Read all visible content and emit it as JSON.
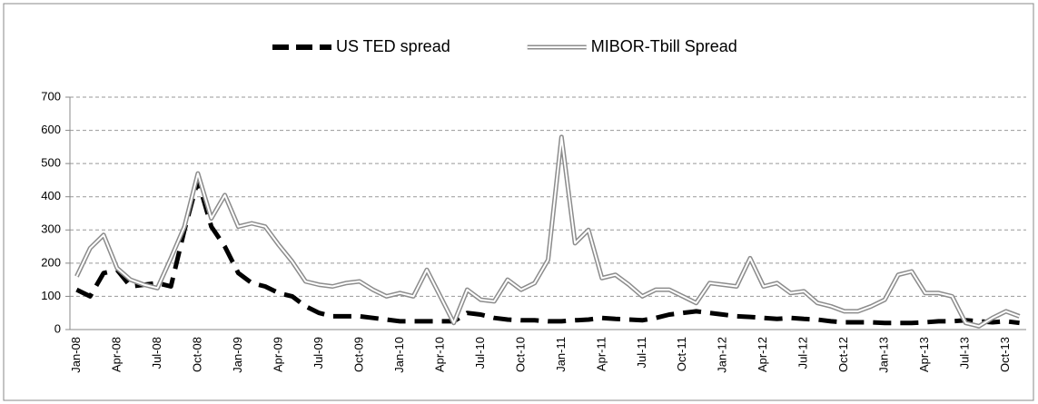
{
  "chart_data": {
    "type": "line",
    "categories": [
      "Jan-08",
      null,
      null,
      "Apr-08",
      null,
      null,
      "Jul-08",
      null,
      null,
      "Oct-08",
      null,
      null,
      "Jan-09",
      null,
      null,
      "Apr-09",
      null,
      null,
      "Jul-09",
      null,
      null,
      "Oct-09",
      null,
      null,
      "Jan-10",
      null,
      null,
      "Apr-10",
      null,
      null,
      "Jul-10",
      null,
      null,
      "Oct-10",
      null,
      null,
      "Jan-11",
      null,
      null,
      "Apr-11",
      null,
      null,
      "Jul-11",
      null,
      null,
      "Oct-11",
      null,
      null,
      "Jan-12",
      null,
      null,
      "Apr-12",
      null,
      null,
      "Jul-12",
      null,
      null,
      "Oct-12",
      null,
      null,
      "Jan-13",
      null,
      null,
      "Apr-13",
      null,
      null,
      "Jul-13",
      null,
      null,
      "Oct-13",
      null
    ],
    "series": [
      {
        "name": "US TED spread",
        "color": "#000000",
        "style": "dashed",
        "values": [
          120,
          100,
          170,
          180,
          130,
          135,
          140,
          130,
          300,
          450,
          310,
          250,
          170,
          140,
          130,
          110,
          100,
          70,
          50,
          40,
          40,
          40,
          35,
          30,
          25,
          25,
          25,
          25,
          25,
          50,
          45,
          35,
          30,
          28,
          28,
          25,
          25,
          28,
          30,
          35,
          32,
          30,
          28,
          35,
          45,
          50,
          55,
          50,
          45,
          40,
          38,
          35,
          32,
          35,
          32,
          30,
          25,
          22,
          22,
          22,
          20,
          20,
          20,
          22,
          25,
          25,
          28,
          25,
          22,
          25,
          20
        ]
      },
      {
        "name": "MIBOR-Tbill Spread",
        "color": "#8c8c8c",
        "style": "double",
        "values": [
          160,
          245,
          285,
          185,
          150,
          135,
          125,
          215,
          310,
          470,
          335,
          405,
          310,
          320,
          310,
          255,
          205,
          145,
          135,
          130,
          140,
          145,
          120,
          100,
          110,
          100,
          180,
          100,
          20,
          120,
          90,
          85,
          150,
          120,
          140,
          210,
          580,
          260,
          300,
          155,
          165,
          135,
          100,
          120,
          120,
          100,
          80,
          140,
          135,
          130,
          215,
          130,
          140,
          110,
          115,
          80,
          70,
          55,
          55,
          70,
          90,
          165,
          175,
          110,
          110,
          100,
          20,
          10,
          35,
          55,
          40
        ]
      }
    ],
    "ylim": [
      0,
      700
    ],
    "yticks": [
      0,
      100,
      200,
      300,
      400,
      500,
      600,
      700
    ],
    "grid": true,
    "legend": "top"
  }
}
